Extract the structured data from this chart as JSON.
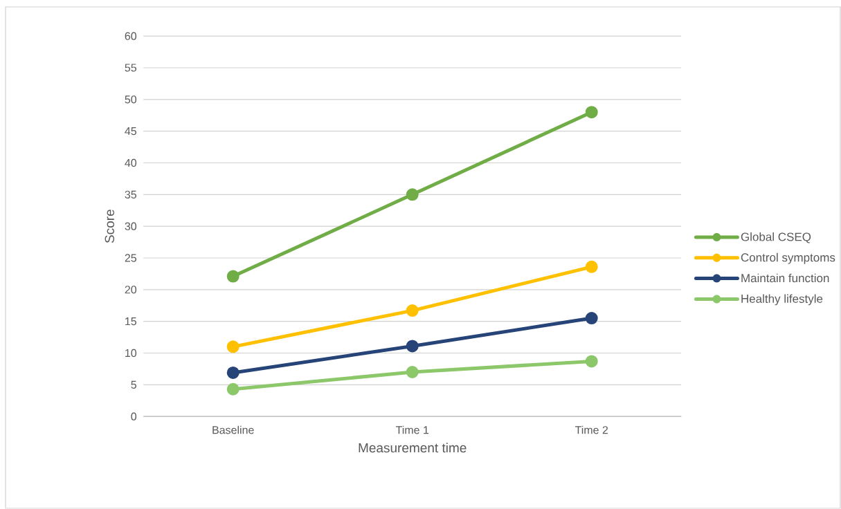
{
  "chart_data": {
    "type": "line",
    "xlabel": "Measurement time",
    "ylabel": "Score",
    "categories": [
      "Baseline",
      "Time 1",
      "Time 2"
    ],
    "series": [
      {
        "name": "Global CSEQ",
        "color": "#70ad47",
        "values": [
          22.1,
          35.0,
          48.0
        ]
      },
      {
        "name": "Control symptoms",
        "color": "#ffc000",
        "values": [
          11.0,
          16.7,
          23.6
        ]
      },
      {
        "name": "Maintain function",
        "color": "#264478",
        "values": [
          6.9,
          11.1,
          15.5
        ]
      },
      {
        "name": "Healthy lifestyle",
        "color": "#8cc86a",
        "values": [
          4.3,
          7.0,
          8.7
        ]
      }
    ],
    "ylim": [
      0,
      60
    ],
    "yticks": [
      0,
      5,
      10,
      15,
      20,
      25,
      30,
      35,
      40,
      45,
      50,
      55,
      60
    ],
    "grid": "y",
    "legend": "right",
    "marker": "circle",
    "line_style": "solid"
  }
}
